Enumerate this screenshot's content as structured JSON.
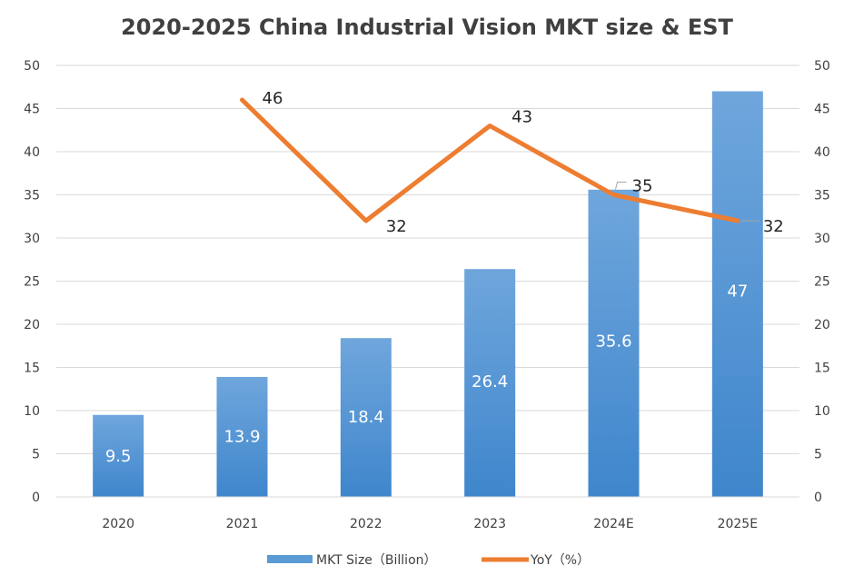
{
  "chart_data": {
    "type": "bar",
    "title": "2020-2025 China Industrial Vision MKT size & EST",
    "categories": [
      "2020",
      "2021",
      "2022",
      "2023",
      "2024E",
      "2025E"
    ],
    "series": [
      {
        "name": "MKT Size（Billion）",
        "type": "bar",
        "axis": "left",
        "values": [
          9.5,
          13.9,
          18.4,
          26.4,
          35.6,
          47
        ],
        "data_labels": [
          "9.5",
          "13.9",
          "18.4",
          "26.4",
          "35.6",
          "47"
        ],
        "color": "#5b9bd5"
      },
      {
        "name": "YoY（%）",
        "type": "line",
        "axis": "right",
        "values": [
          null,
          46,
          32,
          43,
          35,
          32
        ],
        "data_labels": [
          null,
          "46",
          "32",
          "43",
          "35",
          "32"
        ],
        "color": "#ed7d31"
      }
    ],
    "y_left": {
      "min": 0,
      "max": 50,
      "step": 5,
      "ticks": [
        "0",
        "5",
        "10",
        "15",
        "20",
        "25",
        "30",
        "35",
        "40",
        "45",
        "50"
      ]
    },
    "y_right": {
      "min": 0,
      "max": 50,
      "step": 5,
      "ticks": [
        "0",
        "5",
        "10",
        "15",
        "20",
        "25",
        "30",
        "35",
        "40",
        "45",
        "50"
      ]
    },
    "xlabel": "",
    "ylabel": "",
    "grid": true,
    "legend_position": "bottom"
  }
}
